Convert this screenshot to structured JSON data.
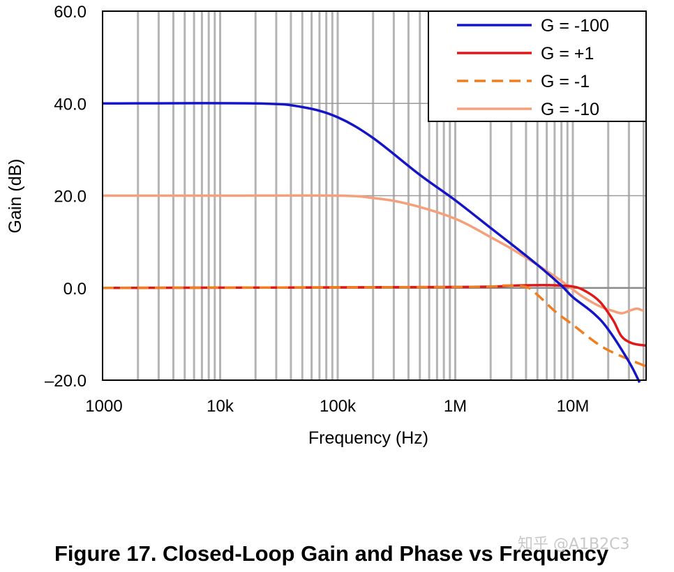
{
  "chart_data": {
    "type": "line",
    "title": "",
    "xlabel": "Frequency (Hz)",
    "ylabel": "Gain (dB)",
    "x_scale": "log",
    "xlim": [
      1000,
      42000000
    ],
    "ylim": [
      -20,
      60
    ],
    "x_ticks": [
      1000,
      10000,
      100000,
      1000000,
      10000000
    ],
    "x_tick_labels": [
      "1000",
      "10k",
      "100k",
      "1M",
      "10M"
    ],
    "y_ticks": [
      -20,
      0,
      20,
      40,
      60
    ],
    "y_tick_labels": [
      "–20.0",
      "0.0",
      "20.0",
      "40.0",
      "60.0"
    ],
    "grid": true,
    "legend_position": "top-right",
    "series": [
      {
        "name": "G = -100",
        "color": "#1515c8",
        "dash": "solid",
        "points": [
          [
            1000,
            40
          ],
          [
            20000,
            40
          ],
          [
            50000,
            39.2
          ],
          [
            100000,
            37
          ],
          [
            200000,
            32.5
          ],
          [
            500000,
            24.5
          ],
          [
            1000000,
            19
          ],
          [
            2000000,
            13
          ],
          [
            3000000,
            9.5
          ],
          [
            5000000,
            5
          ],
          [
            8000000,
            0.5
          ],
          [
            10000000,
            -2
          ],
          [
            15000000,
            -5.5
          ],
          [
            20000000,
            -9
          ],
          [
            30000000,
            -16
          ],
          [
            37000000,
            -20.5
          ]
        ]
      },
      {
        "name": "G = +1",
        "color": "#e01818",
        "dash": "solid",
        "points": [
          [
            1000,
            0
          ],
          [
            1000000,
            0.2
          ],
          [
            3000000,
            0.5
          ],
          [
            6000000,
            0.6
          ],
          [
            10000000,
            0.3
          ],
          [
            13000000,
            -0.8
          ],
          [
            17000000,
            -3
          ],
          [
            22000000,
            -7
          ],
          [
            26000000,
            -10.5
          ],
          [
            32000000,
            -12
          ],
          [
            42000000,
            -12.5
          ]
        ]
      },
      {
        "name": "G = -1",
        "color": "#f07d1e",
        "dash": "dashed",
        "points": [
          [
            1000,
            0
          ],
          [
            1000000,
            0.2
          ],
          [
            2500000,
            0.5
          ],
          [
            4000000,
            0.2
          ],
          [
            5000000,
            -1.5
          ],
          [
            7000000,
            -5
          ],
          [
            10000000,
            -8
          ],
          [
            15000000,
            -11.5
          ],
          [
            20000000,
            -13.5
          ],
          [
            30000000,
            -15.5
          ],
          [
            42000000,
            -17
          ]
        ]
      },
      {
        "name": "G = -10",
        "color": "#f5a07a",
        "dash": "solid",
        "points": [
          [
            1000,
            20
          ],
          [
            10000,
            20
          ],
          [
            100000,
            20
          ],
          [
            200000,
            19.5
          ],
          [
            400000,
            18.2
          ],
          [
            1000000,
            15
          ],
          [
            2000000,
            11
          ],
          [
            3000000,
            8.5
          ],
          [
            5000000,
            5
          ],
          [
            8000000,
            1.5
          ],
          [
            12000000,
            -1.8
          ],
          [
            17000000,
            -4
          ],
          [
            22000000,
            -5
          ],
          [
            26000000,
            -5.5
          ],
          [
            30000000,
            -5
          ],
          [
            35000000,
            -4.5
          ],
          [
            40000000,
            -5
          ]
        ]
      }
    ]
  },
  "caption": "Figure 17. Closed-Loop Gain and Phase vs Frequency",
  "watermark": "知乎 @A1B2C3"
}
